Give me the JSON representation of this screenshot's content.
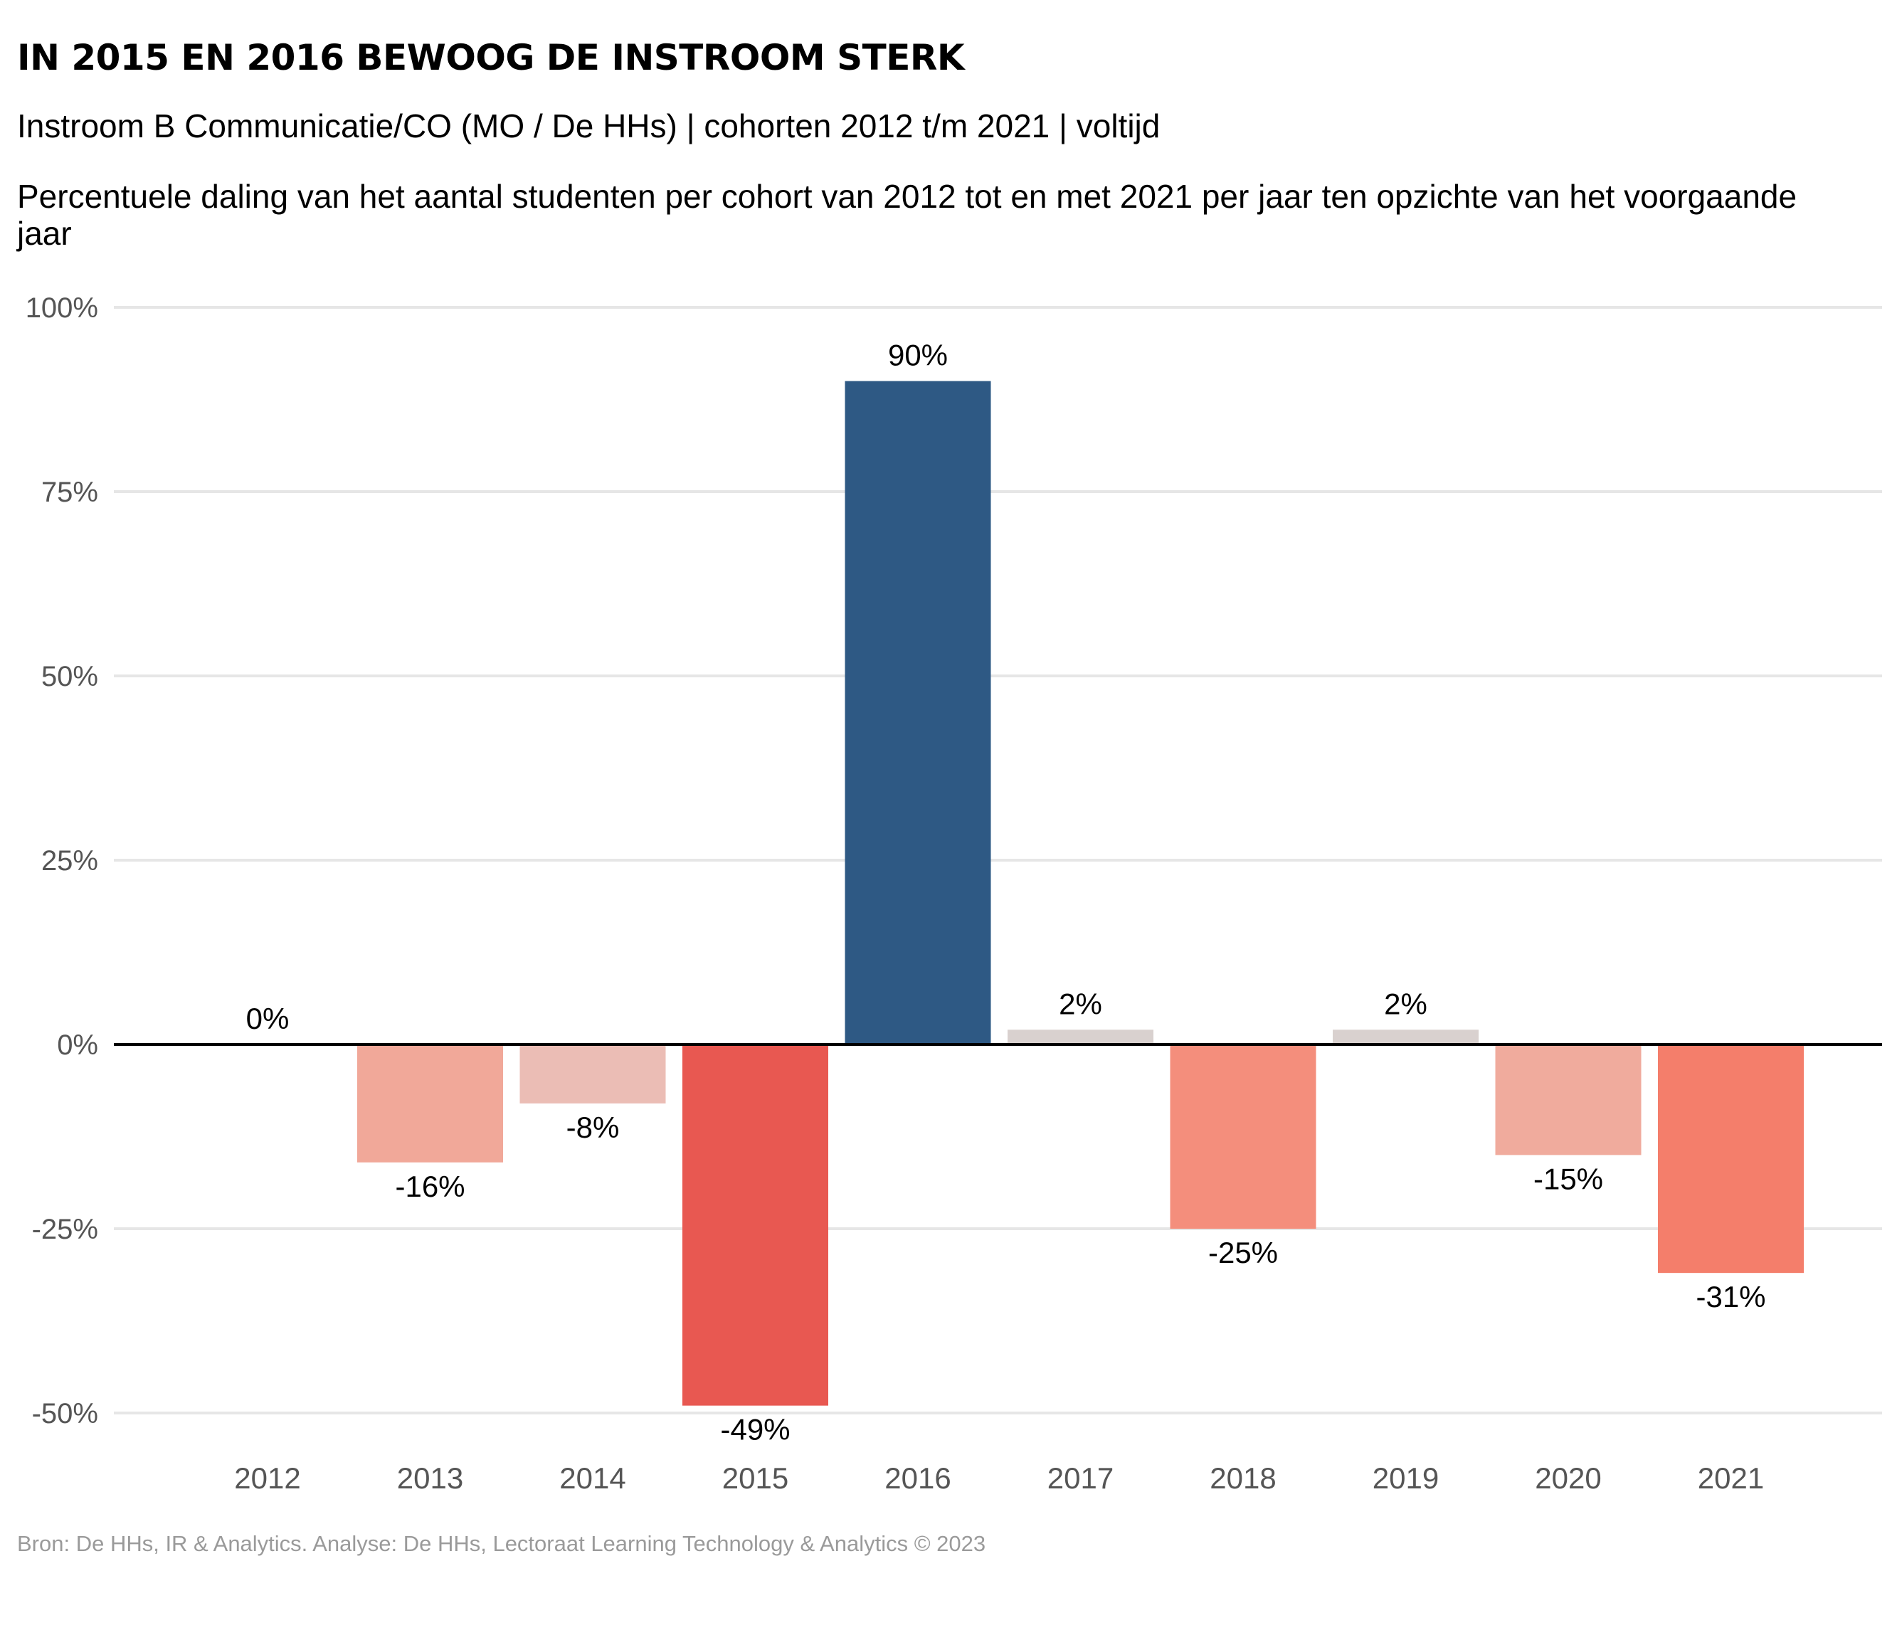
{
  "title": "IN 2015 EN 2016 BEWOOG DE INSTROOM STERK",
  "subtitle": "Instroom B Communicatie/CO (MO / De HHs) | cohorten 2012 t/m 2021 | voltijd",
  "description": "Percentuele daling van het aantal studenten per cohort van 2012 tot en met 2021 per jaar ten opzichte van het voorgaande jaar",
  "caption": "Bron: De HHs, IR & Analytics. Analyse: De HHs, Lectoraat Learning Technology & Analytics © 2023",
  "chart_data": {
    "type": "bar",
    "title": "IN 2015 EN 2016 BEWOOG DE INSTROOM STERK",
    "xlabel": "",
    "ylabel": "",
    "ylim": [
      -50,
      100
    ],
    "yticks": [
      -50,
      -25,
      0,
      25,
      50,
      75,
      100
    ],
    "ytick_labels": [
      "-50%",
      "-25%",
      "0%",
      "25%",
      "50%",
      "75%",
      "100%"
    ],
    "grid": true,
    "legend": "none",
    "categories": [
      "2012",
      "2013",
      "2014",
      "2015",
      "2016",
      "2017",
      "2018",
      "2019",
      "2020",
      "2021"
    ],
    "values": [
      0,
      -16,
      -8,
      -49,
      90,
      2,
      -25,
      2,
      -15,
      -31
    ],
    "data_labels": [
      "0%",
      "-16%",
      "-8%",
      "-49%",
      "90%",
      "2%",
      "-25%",
      "2%",
      "-15%",
      "-31%"
    ],
    "colors": [
      "#cccccc",
      "#f1a899",
      "#ebbdb5",
      "#e85851",
      "#2e5984",
      "#d9d1cf",
      "#f48e7c",
      "#d9d1cf",
      "#f0ab9d",
      "#f47e6b"
    ]
  }
}
